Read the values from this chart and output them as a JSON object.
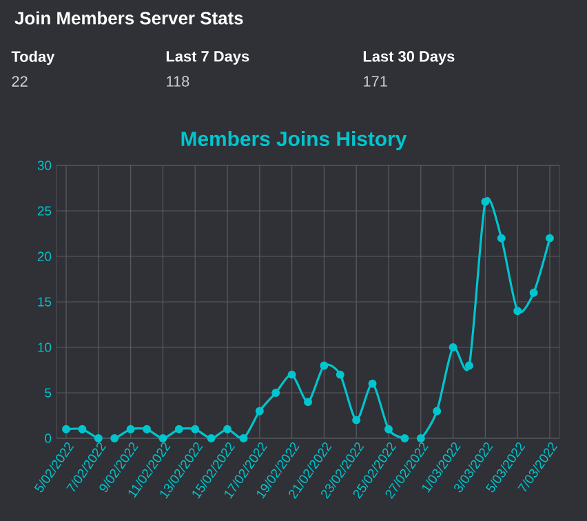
{
  "chart_data": [
    {
      "type": "other",
      "title": "Join Members Server Stats",
      "categories": [
        "Today",
        "Last 7 Days",
        "Last 30 Days"
      ],
      "values": [
        22,
        118,
        171
      ],
      "data_labels": true
    },
    {
      "type": "line",
      "title": "Members Joins History",
      "categories": [
        "5/02/2022",
        null,
        "7/02/2022",
        null,
        "9/02/2022",
        null,
        "11/02/2022",
        null,
        "13/02/2022",
        null,
        "15/02/2022",
        null,
        "17/02/2022",
        null,
        "19/02/2022",
        null,
        "21/02/2022",
        null,
        "23/02/2022",
        null,
        "25/02/2022",
        null,
        "27/02/2022",
        null,
        "1/03/2022",
        null,
        "3/03/2022",
        null,
        "5/03/2022",
        null,
        "7/03/2022"
      ],
      "series": [
        {
          "color": "#00c5cf",
          "values": [
            1,
            1,
            0,
            0,
            1,
            1,
            0,
            1,
            1,
            0,
            1,
            0,
            3,
            5,
            7,
            4,
            8,
            7,
            2,
            6,
            1,
            0,
            0,
            3,
            10,
            8,
            26,
            22,
            14,
            16,
            22
          ]
        }
      ],
      "ylim": [
        0,
        30
      ],
      "yticks": [
        0,
        5,
        10,
        15,
        20,
        25,
        30
      ],
      "grid": true,
      "marker": "circle",
      "line_style": "solid"
    }
  ]
}
